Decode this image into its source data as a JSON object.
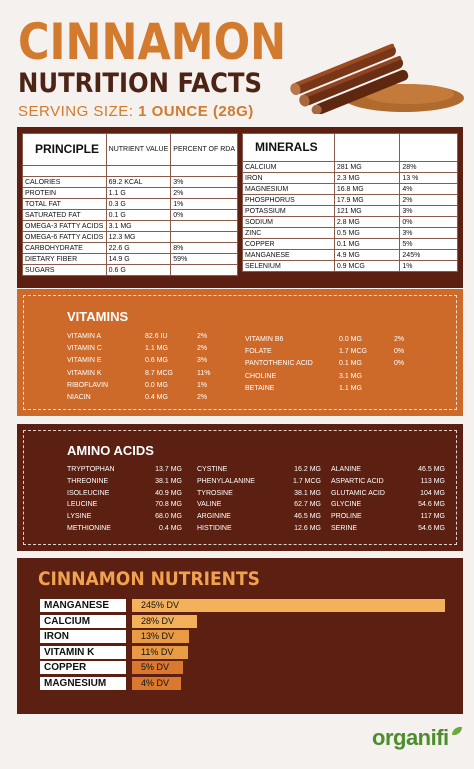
{
  "header": {
    "title_line1": "CINNAMON",
    "title_line2": "NUTRITION FACTS",
    "serving_label": "SERVING SIZE:",
    "serving_value": "1 OUNCE (28G)"
  },
  "principle": {
    "title": "PRINCIPLE",
    "col_value": "NUTRIENT VALUE",
    "col_rda": "PERCENT OF RDA",
    "rows": [
      {
        "name": "CALORIES",
        "value": "69.2 KCAL",
        "rda": "3%"
      },
      {
        "name": "PROTEIN",
        "value": "1.1 G",
        "rda": "2%"
      },
      {
        "name": "TOTAL FAT",
        "value": "0.3 G",
        "rda": "1%"
      },
      {
        "name": "SATURATED FAT",
        "value": "0.1 G",
        "rda": "0%"
      },
      {
        "name": "OMEGA-3 FATTY ACIDS",
        "value": "3.1 MG",
        "rda": ""
      },
      {
        "name": "OMEGA-6 FATTY ACIDS",
        "value": "12.3 MG",
        "rda": ""
      },
      {
        "name": "CARBOHYDRATE",
        "value": "22.6 G",
        "rda": "8%"
      },
      {
        "name": "DIETARY FIBER",
        "value": "14.9 G",
        "rda": "59%"
      },
      {
        "name": "SUGARS",
        "value": "0.6 G",
        "rda": ""
      }
    ]
  },
  "minerals": {
    "title": "MINERALS",
    "rows": [
      {
        "name": "CALCIUM",
        "value": "281 MG",
        "rda": "28%"
      },
      {
        "name": "IRON",
        "value": "2.3 MG",
        "rda": "13 %"
      },
      {
        "name": "MAGNESIUM",
        "value": "16.8 MG",
        "rda": "4%"
      },
      {
        "name": "PHOSPHORUS",
        "value": "17.9 MG",
        "rda": "2%"
      },
      {
        "name": "POTASSIUM",
        "value": "121 MG",
        "rda": "3%"
      },
      {
        "name": "SODIUM",
        "value": "2.8 MG",
        "rda": "0%"
      },
      {
        "name": "ZINC",
        "value": "0.5 MG",
        "rda": "3%"
      },
      {
        "name": "COPPER",
        "value": "0.1 MG",
        "rda": "5%"
      },
      {
        "name": "MANGANESE",
        "value": "4.9 MG",
        "rda": "245%"
      },
      {
        "name": "SELENIUM",
        "value": "0.9 MCG",
        "rda": "1%"
      }
    ]
  },
  "vitamins": {
    "title": "VITAMINS",
    "left": [
      {
        "name": "VITAMIN A",
        "value": "82.6 IU",
        "rda": "2%"
      },
      {
        "name": "VITAMIN C",
        "value": "1.1 MG",
        "rda": "2%"
      },
      {
        "name": "VITAMIN E",
        "value": "0.6 MG",
        "rda": "3%"
      },
      {
        "name": "VITAMIN K",
        "value": "8.7 MCG",
        "rda": "11%"
      },
      {
        "name": "RIBOFLAVIN",
        "value": "0.0 MG",
        "rda": "1%"
      },
      {
        "name": "NIACIN",
        "value": "0.4 MG",
        "rda": "2%"
      }
    ],
    "right": [
      {
        "name": "VITAMIN B6",
        "value": "0.0 MG",
        "rda": "2%"
      },
      {
        "name": "FOLATE",
        "value": "1.7 MCG",
        "rda": "0%"
      },
      {
        "name": "PANTOTHENIC ACID",
        "value": "0.1 MG",
        "rda": "0%"
      },
      {
        "name": "CHOLINE",
        "value": "3.1 MG",
        "rda": ""
      },
      {
        "name": "BETAINE",
        "value": "1.1 MG",
        "rda": ""
      }
    ]
  },
  "amino": {
    "title": "AMINO ACIDS",
    "col1": [
      {
        "name": "TRYPTOPHAN",
        "value": "13.7 MG"
      },
      {
        "name": "THREONINE",
        "value": "38.1 MG"
      },
      {
        "name": "ISOLEUCINE",
        "value": "40.9 MG"
      },
      {
        "name": "LEUCINE",
        "value": "70.8 MG"
      },
      {
        "name": "LYSINE",
        "value": "68.0 MG"
      },
      {
        "name": "METHIONINE",
        "value": "0.4 MG"
      }
    ],
    "col2": [
      {
        "name": "CYSTINE",
        "value": "16.2 MG"
      },
      {
        "name": "PHENYLALANINE",
        "value": "1.7 MCG"
      },
      {
        "name": "TYROSINE",
        "value": "38.1 MG"
      },
      {
        "name": "VALINE",
        "value": "62.7 MG"
      },
      {
        "name": "ARGININE",
        "value": "46.5 MG"
      },
      {
        "name": "HISTIDINE",
        "value": "12.6 MG"
      }
    ],
    "col3": [
      {
        "name": "ALANINE",
        "value": "46.5 MG"
      },
      {
        "name": "ASPARTIC ACID",
        "value": "113 MG"
      },
      {
        "name": "GLUTAMIC ACID",
        "value": "104 MG"
      },
      {
        "name": "GLYCINE",
        "value": "54.6 MG"
      },
      {
        "name": "PROLINE",
        "value": "117 MG"
      },
      {
        "name": "SERINE",
        "value": "54.6 MG"
      }
    ]
  },
  "nutrients_chart": {
    "title": "CINNAMON NUTRIENTS",
    "colors": {
      "light": "#f3b25a",
      "mid": "#e99a45",
      "dark": "#d9782e"
    }
  },
  "chart_data": {
    "type": "bar",
    "title": "CINNAMON NUTRIENTS",
    "categories": [
      "MANGANESE",
      "CALCIUM",
      "IRON",
      "VITAMIN K",
      "COPPER",
      "MAGNESIUM"
    ],
    "values": [
      245,
      28,
      13,
      11,
      5,
      4
    ],
    "labels": [
      "245% DV",
      "28% DV",
      "13% DV",
      "11% DV",
      "5% DV",
      "4% DV"
    ],
    "unit": "% DV"
  },
  "brand": {
    "name": "organifi"
  }
}
